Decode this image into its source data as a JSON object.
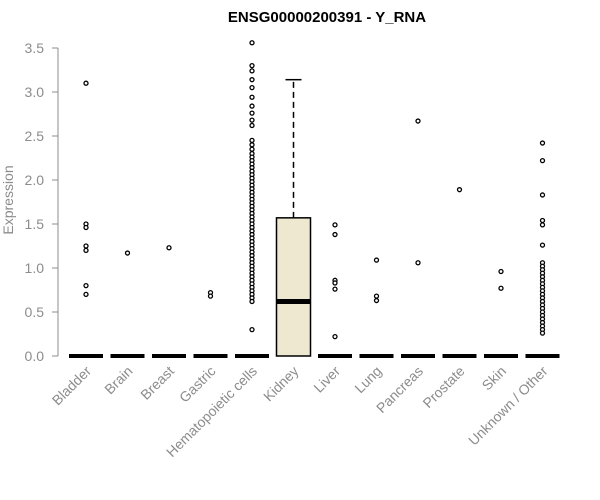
{
  "chart_data": {
    "type": "box",
    "title": "ENSG00000200391 - Y_RNA",
    "ylabel": "Expression",
    "xlabel": "",
    "ylim": [
      0,
      3.6
    ],
    "yticks": [
      "0.0",
      "0.5",
      "1.0",
      "1.5",
      "2.0",
      "2.5",
      "3.0",
      "3.5"
    ],
    "box_fill": "#EFE8D0",
    "categories": [
      "Bladder",
      "Brain",
      "Breast",
      "Gastric",
      "Hematopoietic cells",
      "Kidney",
      "Liver",
      "Lung",
      "Pancreas",
      "Prostate",
      "Skin",
      "Unknown / Other"
    ],
    "boxes": [
      {
        "q1": 0,
        "median": 0,
        "q3": 0,
        "whisker_low": 0,
        "whisker_high": 0,
        "outliers": [
          3.1,
          1.5,
          1.46,
          1.25,
          1.2,
          0.8,
          0.7
        ]
      },
      {
        "q1": 0,
        "median": 0,
        "q3": 0,
        "whisker_low": 0,
        "whisker_high": 0,
        "outliers": [
          1.17
        ]
      },
      {
        "q1": 0,
        "median": 0,
        "q3": 0,
        "whisker_low": 0,
        "whisker_high": 0,
        "outliers": [
          1.23
        ]
      },
      {
        "q1": 0,
        "median": 0,
        "q3": 0,
        "whisker_low": 0,
        "whisker_high": 0,
        "outliers": [
          0.72,
          0.68
        ]
      },
      {
        "q1": 0,
        "median": 0,
        "q3": 0,
        "whisker_low": 0,
        "whisker_high": 0,
        "outliers": [
          3.56,
          3.3,
          3.24,
          3.14,
          3.05,
          2.94,
          2.84,
          2.76,
          2.68,
          2.62,
          2.45,
          2.4,
          2.35,
          2.3,
          2.26,
          2.22,
          2.18,
          2.14,
          2.1,
          2.06,
          2.02,
          1.98,
          1.94,
          1.9,
          1.86,
          1.82,
          1.78,
          1.74,
          1.7,
          1.66,
          1.62,
          1.58,
          1.54,
          1.5,
          1.46,
          1.42,
          1.38,
          1.34,
          1.3,
          1.26,
          1.22,
          1.18,
          1.14,
          1.1,
          1.06,
          1.02,
          0.98,
          0.94,
          0.9,
          0.86,
          0.82,
          0.78,
          0.74,
          0.7,
          0.66,
          0.62,
          0.3
        ]
      },
      {
        "q1": 0,
        "median": 0.62,
        "q3": 1.57,
        "whisker_low": 0,
        "whisker_high": 3.14,
        "outliers": []
      },
      {
        "q1": 0,
        "median": 0,
        "q3": 0,
        "whisker_low": 0,
        "whisker_high": 0,
        "outliers": [
          1.49,
          1.38,
          0.86,
          0.83,
          0.76,
          0.22
        ]
      },
      {
        "q1": 0,
        "median": 0,
        "q3": 0,
        "whisker_low": 0,
        "whisker_high": 0,
        "outliers": [
          1.09,
          0.68,
          0.63
        ]
      },
      {
        "q1": 0,
        "median": 0,
        "q3": 0,
        "whisker_low": 0,
        "whisker_high": 0,
        "outliers": [
          2.67,
          1.06
        ]
      },
      {
        "q1": 0,
        "median": 0,
        "q3": 0,
        "whisker_low": 0,
        "whisker_high": 0,
        "outliers": [
          1.89
        ]
      },
      {
        "q1": 0,
        "median": 0,
        "q3": 0,
        "whisker_low": 0,
        "whisker_high": 0,
        "outliers": [
          0.96,
          0.77
        ]
      },
      {
        "q1": 0,
        "median": 0,
        "q3": 0,
        "whisker_low": 0,
        "whisker_high": 0,
        "outliers": [
          2.42,
          2.22,
          1.83,
          1.54,
          1.49,
          1.26,
          1.06,
          1.02,
          0.98,
          0.94,
          0.9,
          0.86,
          0.82,
          0.78,
          0.74,
          0.7,
          0.66,
          0.62,
          0.58,
          0.54,
          0.5,
          0.46,
          0.42,
          0.38,
          0.34,
          0.3,
          0.26
        ]
      }
    ]
  }
}
